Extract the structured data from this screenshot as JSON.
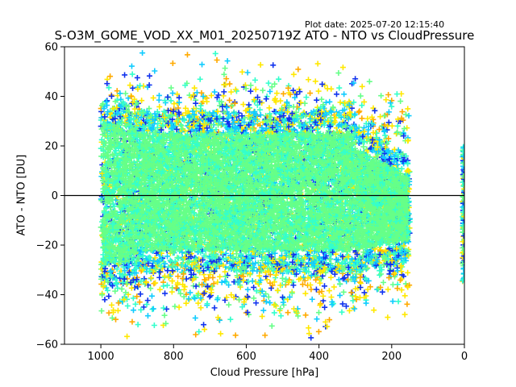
{
  "header": {
    "plot_date": "Plot date: 2025-07-20 12:15:40",
    "title": "S-O3M_GOME_VOD_XX_M01_20250719Z ATO - NTO vs CloudPressure"
  },
  "chart_data": {
    "type": "scatter",
    "marker": "+",
    "title": "S-O3M_GOME_VOD_XX_M01_20250719Z ATO - NTO vs CloudPressure",
    "xlabel": "Cloud Pressure [hPa]",
    "ylabel": "ATO - NTO [DU]",
    "xlim": [
      1100,
      0
    ],
    "ylim": [
      -60,
      60
    ],
    "x_ticks": [
      1000,
      800,
      600,
      400,
      200,
      0
    ],
    "y_ticks": [
      -60,
      -40,
      -20,
      0,
      20,
      40,
      60
    ],
    "reference_line_y": 0,
    "grid": false,
    "colors": {
      "dense_core": "#66ff88",
      "mid": "#33ffcc",
      "cyan": "#11ccff",
      "blue": "#1133ee",
      "yellow": "#ffe800",
      "orange": "#ffaa00"
    },
    "clusters": [
      {
        "name": "main-band",
        "x_range": [
          1000,
          150
        ],
        "y_core_range": [
          -20,
          20
        ],
        "y_spread_range": [
          -58,
          58
        ]
      },
      {
        "name": "zero-pressure-column",
        "x_range": [
          5,
          0
        ],
        "y_range": [
          -35,
          20
        ]
      }
    ]
  }
}
